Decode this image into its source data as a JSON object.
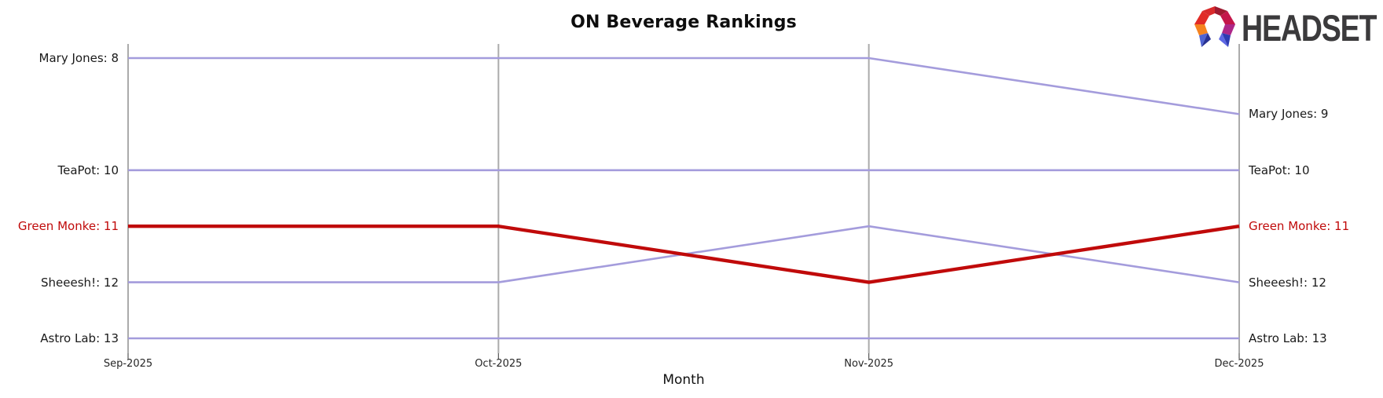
{
  "title": "ON Beverage Rankings",
  "xlabel": "Month",
  "logo": {
    "text": "HEADSET",
    "icon": "headset-faceted-arch"
  },
  "chart_data": {
    "type": "line",
    "subtype": "bump-ranking",
    "title": "ON Beverage Rankings",
    "xlabel": "Month",
    "ylabel": "",
    "x": [
      "Sep-2025",
      "Oct-2025",
      "Nov-2025",
      "Dec-2025"
    ],
    "series": [
      {
        "name": "Mary Jones",
        "values": [
          8,
          8,
          8,
          9
        ],
        "left_label": "Mary Jones: 8",
        "right_label": "Mary Jones: 9",
        "highlight": false
      },
      {
        "name": "TeaPot",
        "values": [
          10,
          10,
          10,
          10
        ],
        "left_label": "TeaPot: 10",
        "right_label": "TeaPot: 10",
        "highlight": false
      },
      {
        "name": "Green Monke",
        "values": [
          11,
          11,
          12,
          11
        ],
        "left_label": "Green Monke: 11",
        "right_label": "Green Monke: 11",
        "highlight": true
      },
      {
        "name": "Sheeesh!",
        "values": [
          12,
          12,
          11,
          12
        ],
        "left_label": "Sheeesh!: 12",
        "right_label": "Sheeesh!: 12",
        "highlight": false
      },
      {
        "name": "Astro Lab",
        "values": [
          13,
          13,
          13,
          13
        ],
        "left_label": "Astro Lab: 13",
        "right_label": "Astro Lab: 13",
        "highlight": false
      }
    ],
    "y_axis": {
      "type": "rank",
      "top_rank": 8,
      "bottom_rank": 13,
      "inverted": true
    },
    "grid": "vertical-only",
    "legend": "none",
    "colors": {
      "line": "#a49cdc",
      "highlight": "#c00a0a",
      "grid": "#ababab",
      "label": "#1a1a1a",
      "tick": "#262626",
      "title": "#0d0d0d"
    }
  }
}
